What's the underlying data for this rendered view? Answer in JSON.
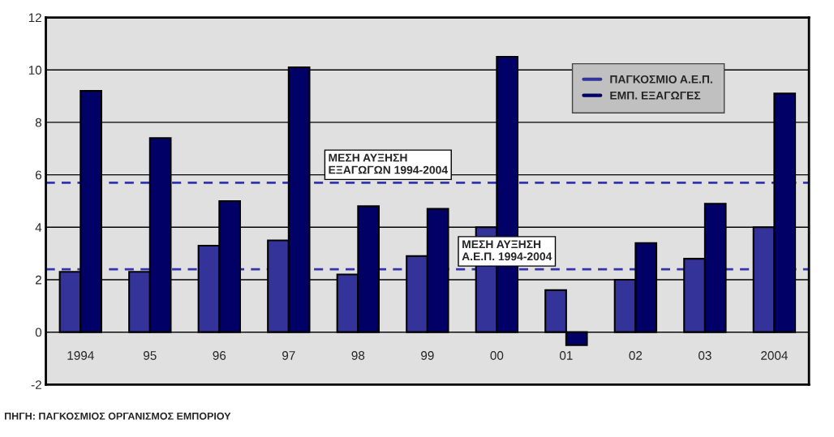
{
  "chart_data": {
    "type": "bar",
    "categories": [
      "1994",
      "95",
      "96",
      "97",
      "98",
      "99",
      "00",
      "01",
      "02",
      "03",
      "2004"
    ],
    "series": [
      {
        "name": "ΠΑΓΚΟΣΜΙΟ Α.Ε.Π.",
        "color": "#333399",
        "values": [
          2.3,
          2.3,
          3.3,
          3.5,
          2.2,
          2.9,
          4.0,
          1.6,
          2.0,
          2.8,
          4.0
        ]
      },
      {
        "name": "ΕΜΠ. ΕΞΑΓΩΓΕΣ",
        "color": "#000066",
        "values": [
          9.2,
          7.4,
          5.0,
          10.1,
          4.8,
          4.7,
          10.5,
          -0.5,
          3.4,
          4.9,
          9.1
        ]
      }
    ],
    "ylim": [
      -2,
      12
    ],
    "yticks": [
      -2,
      0,
      2,
      4,
      6,
      8,
      10,
      12
    ],
    "grid": "y",
    "legend": "top right",
    "ref_lines": [
      {
        "axis": "y",
        "value": 5.7,
        "label": "ΜΕΣΗ ΑΥΞΗΣΗ\nΕΞΑΓΩΓΩΝ 1994-2004",
        "color": "#3333aa",
        "line_style": "dashed"
      },
      {
        "axis": "y",
        "value": 2.4,
        "label": "ΜΕΣΗ ΑΥΞΗΣΗ\nΑ.Ε.Π. 1994-2004",
        "color": "#3333aa",
        "line_style": "dashed"
      }
    ],
    "annotations": [
      "ΠΗΓΗ: ΠΑΓΚΟΣΜΙΟΣ ΟΡΓΑΝΙΣΜΟΣ ΕΜΠΟΡΙΟΥ"
    ]
  }
}
